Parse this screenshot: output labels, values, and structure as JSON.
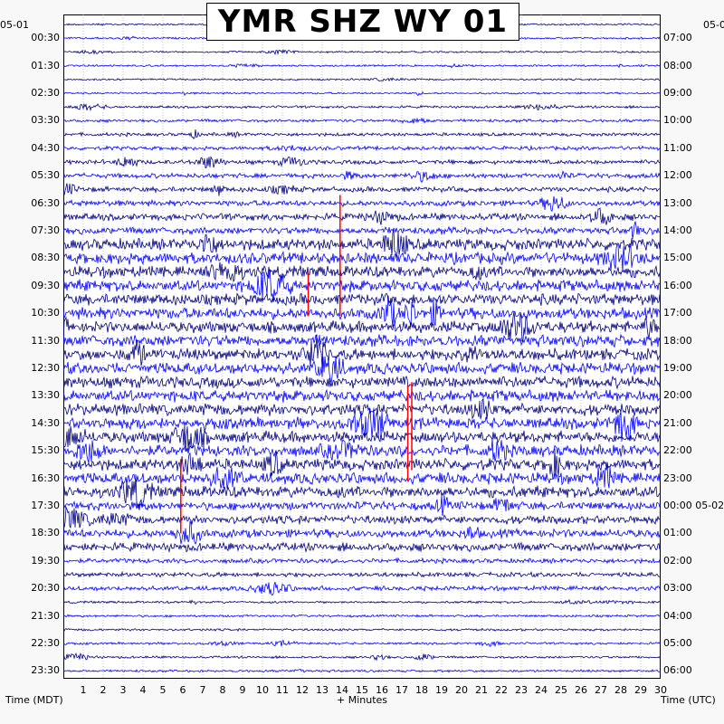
{
  "chart_data": {
    "type": "line",
    "title": "YMR SHZ WY 01",
    "xlabel": "+ Minutes",
    "left_axis_title": "Time (MDT)",
    "right_axis_title": "Time (UTC)",
    "left_corner_date": "05-01",
    "right_corner_date": "05-0",
    "xlim": [
      0,
      30
    ],
    "x_ticks": [
      "1",
      "2",
      "3",
      "4",
      "5",
      "6",
      "7",
      "8",
      "9",
      "10",
      "11",
      "12",
      "13",
      "14",
      "15",
      "16",
      "17",
      "18",
      "19",
      "20",
      "21",
      "22",
      "23",
      "24",
      "25",
      "26",
      "27",
      "28",
      "29",
      "30"
    ],
    "rows_per_hour": 2,
    "row_count": 48,
    "trace_colors": [
      "#000080",
      "#0000ff"
    ],
    "left_time_labels": [
      "00:30",
      "01:30",
      "02:30",
      "03:30",
      "04:30",
      "05:30",
      "06:30",
      "07:30",
      "08:30",
      "09:30",
      "10:30",
      "11:30",
      "12:30",
      "13:30",
      "14:30",
      "15:30",
      "16:30",
      "17:30",
      "18:30",
      "19:30",
      "20:30",
      "21:30",
      "22:30",
      "23:30"
    ],
    "right_time_labels": [
      "07:00",
      "08:00",
      "09:00",
      "10:00",
      "11:00",
      "12:00",
      "13:00",
      "14:00",
      "15:00",
      "16:00",
      "17:00",
      "18:00",
      "19:00",
      "20:00",
      "21:00",
      "22:00",
      "23:00",
      "00:00 05-02",
      "01:00",
      "02:00",
      "03:00",
      "04:00",
      "05:00",
      "06:00"
    ],
    "clipping_marks_color": "#ff0000",
    "clipping_marks": [
      {
        "minute": 12.3,
        "hour_start": 9.0,
        "hour_end": 10.6
      },
      {
        "minute": 13.9,
        "hour_start": 6.2,
        "hour_end": 10.6
      },
      {
        "minute": 17.3,
        "hour_start": 13.1,
        "hour_end": 16.6
      },
      {
        "minute": 17.5,
        "hour_start": 13.0,
        "hour_end": 16.2
      },
      {
        "minute": 5.9,
        "hour_start": 15.8,
        "hour_end": 18.5
      }
    ]
  }
}
